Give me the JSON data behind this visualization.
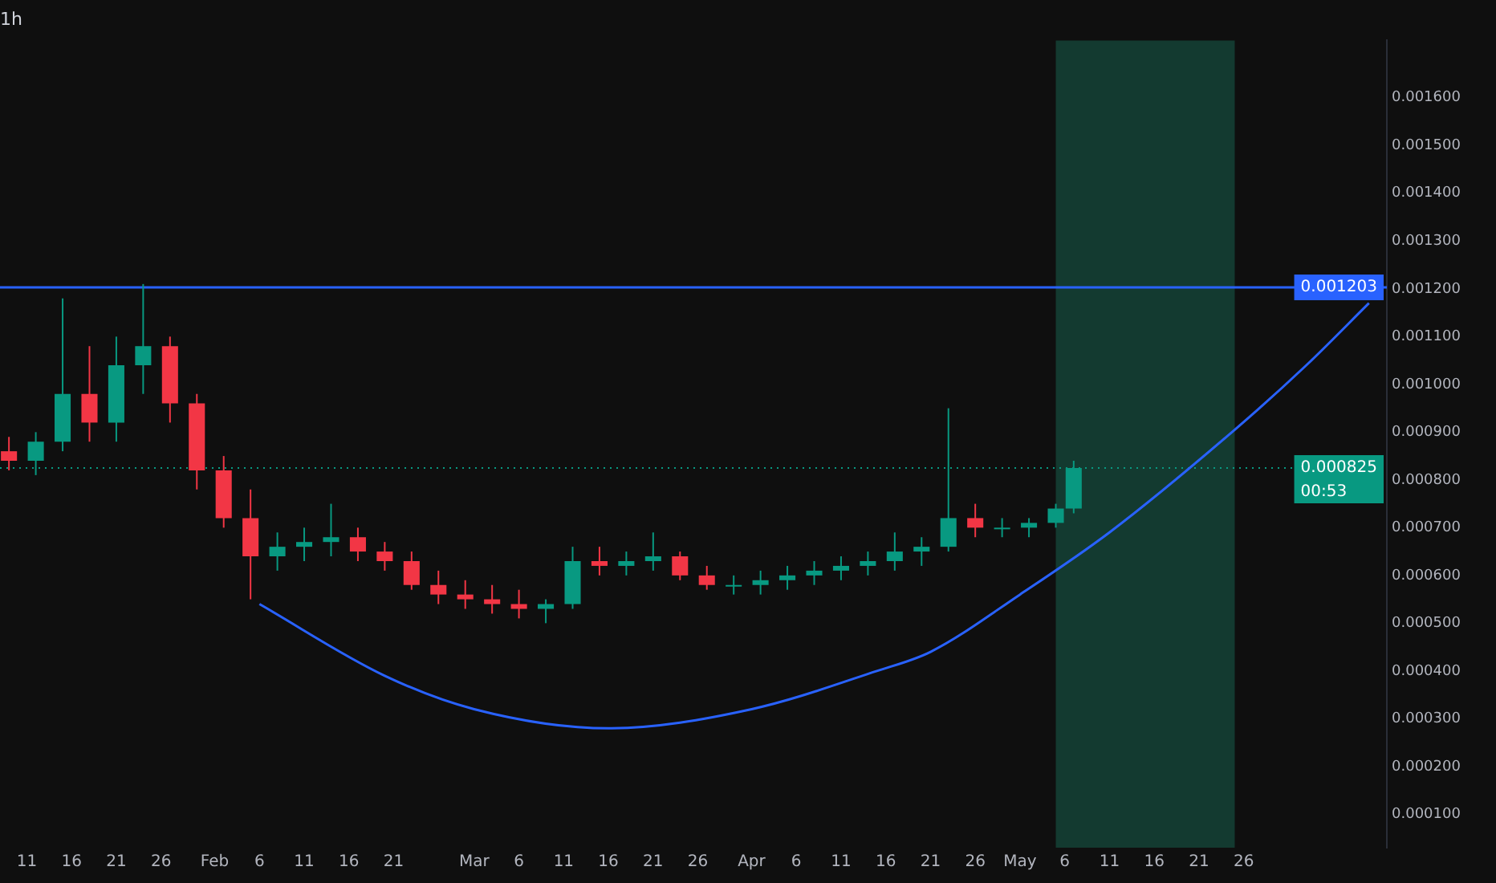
{
  "chart_data": {
    "type": "candlestick",
    "title": "1h",
    "x": [
      "--01-09",
      "--01-12",
      "--01-15",
      "--01-18",
      "--01-21",
      "--01-24",
      "--01-27",
      "--01-30",
      "--02-02",
      "--02-05",
      "--02-08",
      "--02-11",
      "--02-14",
      "--02-17",
      "--02-20",
      "--02-23",
      "--02-26",
      "--02-29",
      "--03-03",
      "--03-06",
      "--03-09",
      "--03-12",
      "--03-15",
      "--03-18",
      "--03-21",
      "--03-24",
      "--03-27",
      "--03-30",
      "--04-02",
      "--04-05",
      "--04-08",
      "--04-11",
      "--04-14",
      "--04-17",
      "--04-20",
      "--04-23",
      "--04-26",
      "--04-29",
      "--05-02",
      "--05-05",
      "--05-07"
    ],
    "ohlc": [
      [
        0.00086,
        0.00089,
        0.00082,
        0.00084
      ],
      [
        0.00084,
        0.0009,
        0.00081,
        0.00088
      ],
      [
        0.00088,
        0.00118,
        0.00086,
        0.00098
      ],
      [
        0.00098,
        0.00108,
        0.00088,
        0.00092
      ],
      [
        0.00092,
        0.0011,
        0.00088,
        0.00104
      ],
      [
        0.00104,
        0.00121,
        0.00098,
        0.00108
      ],
      [
        0.00108,
        0.0011,
        0.00092,
        0.00096
      ],
      [
        0.00096,
        0.00098,
        0.00078,
        0.00082
      ],
      [
        0.00082,
        0.00085,
        0.0007,
        0.00072
      ],
      [
        0.00072,
        0.00078,
        0.00055,
        0.00064
      ],
      [
        0.00064,
        0.00069,
        0.00061,
        0.00066
      ],
      [
        0.00066,
        0.0007,
        0.00063,
        0.00067
      ],
      [
        0.00067,
        0.00075,
        0.00064,
        0.00068
      ],
      [
        0.00068,
        0.0007,
        0.00063,
        0.00065
      ],
      [
        0.00065,
        0.00067,
        0.00061,
        0.00063
      ],
      [
        0.00063,
        0.00065,
        0.00057,
        0.00058
      ],
      [
        0.00058,
        0.00061,
        0.00054,
        0.00056
      ],
      [
        0.00056,
        0.00059,
        0.00053,
        0.00055
      ],
      [
        0.00055,
        0.00058,
        0.00052,
        0.00054
      ],
      [
        0.00054,
        0.00057,
        0.00051,
        0.00053
      ],
      [
        0.00053,
        0.00055,
        0.0005,
        0.00054
      ],
      [
        0.00054,
        0.00066,
        0.00053,
        0.00063
      ],
      [
        0.00063,
        0.00066,
        0.0006,
        0.00062
      ],
      [
        0.00062,
        0.00065,
        0.0006,
        0.00063
      ],
      [
        0.00063,
        0.00069,
        0.00061,
        0.00064
      ],
      [
        0.00064,
        0.00065,
        0.00059,
        0.0006
      ],
      [
        0.0006,
        0.00062,
        0.00057,
        0.00058
      ],
      [
        0.00058,
        0.0006,
        0.00056,
        0.00058
      ],
      [
        0.00058,
        0.00061,
        0.00056,
        0.00059
      ],
      [
        0.00059,
        0.00062,
        0.00057,
        0.0006
      ],
      [
        0.0006,
        0.00063,
        0.00058,
        0.00061
      ],
      [
        0.00061,
        0.00064,
        0.00059,
        0.00062
      ],
      [
        0.00062,
        0.00065,
        0.0006,
        0.00063
      ],
      [
        0.00063,
        0.00069,
        0.00061,
        0.00065
      ],
      [
        0.00065,
        0.00068,
        0.00062,
        0.00066
      ],
      [
        0.00066,
        0.00095,
        0.00065,
        0.00072
      ],
      [
        0.00072,
        0.00075,
        0.00068,
        0.0007
      ],
      [
        0.0007,
        0.00072,
        0.00068,
        0.0007
      ],
      [
        0.0007,
        0.00072,
        0.00068,
        0.00071
      ],
      [
        0.00071,
        0.00075,
        0.0007,
        0.00074
      ],
      [
        0.00074,
        0.00084,
        0.00073,
        0.000825
      ]
    ],
    "series": [
      {
        "type": "line",
        "color": "#2962ff",
        "x": [
          "--02-06",
          "--02-20",
          "--03-01",
          "--03-16",
          "--04-01",
          "--04-15",
          "--04-21",
          "--05-01",
          "--05-11",
          "--05-25",
          "--06-02",
          "--06-09"
        ],
        "values": [
          0.00054,
          0.00039,
          0.00032,
          0.00028,
          0.00032,
          0.0004,
          0.00044,
          0.00056,
          0.00069,
          0.000905,
          0.00104,
          0.00117
        ]
      }
    ],
    "xlim": [
      "--01-08",
      "--06-11"
    ],
    "xticks": [
      {
        "value": "--01-11",
        "label": "11"
      },
      {
        "value": "--01-16",
        "label": "16"
      },
      {
        "value": "--01-21",
        "label": "21"
      },
      {
        "value": "--01-26",
        "label": "26"
      },
      {
        "value": "--02-01",
        "label": "Feb"
      },
      {
        "value": "--02-06",
        "label": "6"
      },
      {
        "value": "--02-11",
        "label": "11"
      },
      {
        "value": "--02-16",
        "label": "16"
      },
      {
        "value": "--02-21",
        "label": "21"
      },
      {
        "value": "--03-01",
        "label": "Mar"
      },
      {
        "value": "--03-06",
        "label": "6"
      },
      {
        "value": "--03-11",
        "label": "11"
      },
      {
        "value": "--03-16",
        "label": "16"
      },
      {
        "value": "--03-21",
        "label": "21"
      },
      {
        "value": "--03-26",
        "label": "26"
      },
      {
        "value": "--04-01",
        "label": "Apr"
      },
      {
        "value": "--04-06",
        "label": "6"
      },
      {
        "value": "--04-11",
        "label": "11"
      },
      {
        "value": "--04-16",
        "label": "16"
      },
      {
        "value": "--04-21",
        "label": "21"
      },
      {
        "value": "--04-26",
        "label": "26"
      },
      {
        "value": "--05-01",
        "label": "May"
      },
      {
        "value": "--05-06",
        "label": "6"
      },
      {
        "value": "--05-11",
        "label": "11"
      },
      {
        "value": "--05-16",
        "label": "16"
      },
      {
        "value": "--05-21",
        "label": "21"
      },
      {
        "value": "--05-26",
        "label": "26"
      }
    ],
    "ylim": [
      3e-05,
      0.00172
    ],
    "yticks": [
      {
        "value": 0.0001,
        "label": "0.000100"
      },
      {
        "value": 0.0002,
        "label": "0.000200"
      },
      {
        "value": 0.0003,
        "label": "0.000300"
      },
      {
        "value": 0.0004,
        "label": "0.000400"
      },
      {
        "value": 0.0005,
        "label": "0.000500"
      },
      {
        "value": 0.0006,
        "label": "0.000600"
      },
      {
        "value": 0.0007,
        "label": "0.000700"
      },
      {
        "value": 0.0008,
        "label": "0.000800"
      },
      {
        "value": 0.0009,
        "label": "0.000900"
      },
      {
        "value": 0.001,
        "label": "0.001000"
      },
      {
        "value": 0.0011,
        "label": "0.001100"
      },
      {
        "value": 0.0012,
        "label": "0.001200"
      },
      {
        "value": 0.0013,
        "label": "0.001300"
      },
      {
        "value": 0.0014,
        "label": "0.001400"
      },
      {
        "value": 0.0015,
        "label": "0.001500"
      },
      {
        "value": 0.0016,
        "label": "0.001600"
      }
    ],
    "ref_lines": [
      {
        "axis": "y",
        "value": 0.001203,
        "label": "0.001203",
        "color": "#2962ff",
        "line_style": "solid"
      },
      {
        "axis": "y",
        "value": 0.000825,
        "label": "0.000825",
        "color": "#089981",
        "line_style": "dotted"
      }
    ],
    "bands": [
      {
        "axis": "x",
        "from": "--05-05",
        "to": "--05-25",
        "color": "#133a30"
      }
    ],
    "annotations": [
      "00:53"
    ],
    "legend": false,
    "grid": false,
    "marker": "none"
  }
}
